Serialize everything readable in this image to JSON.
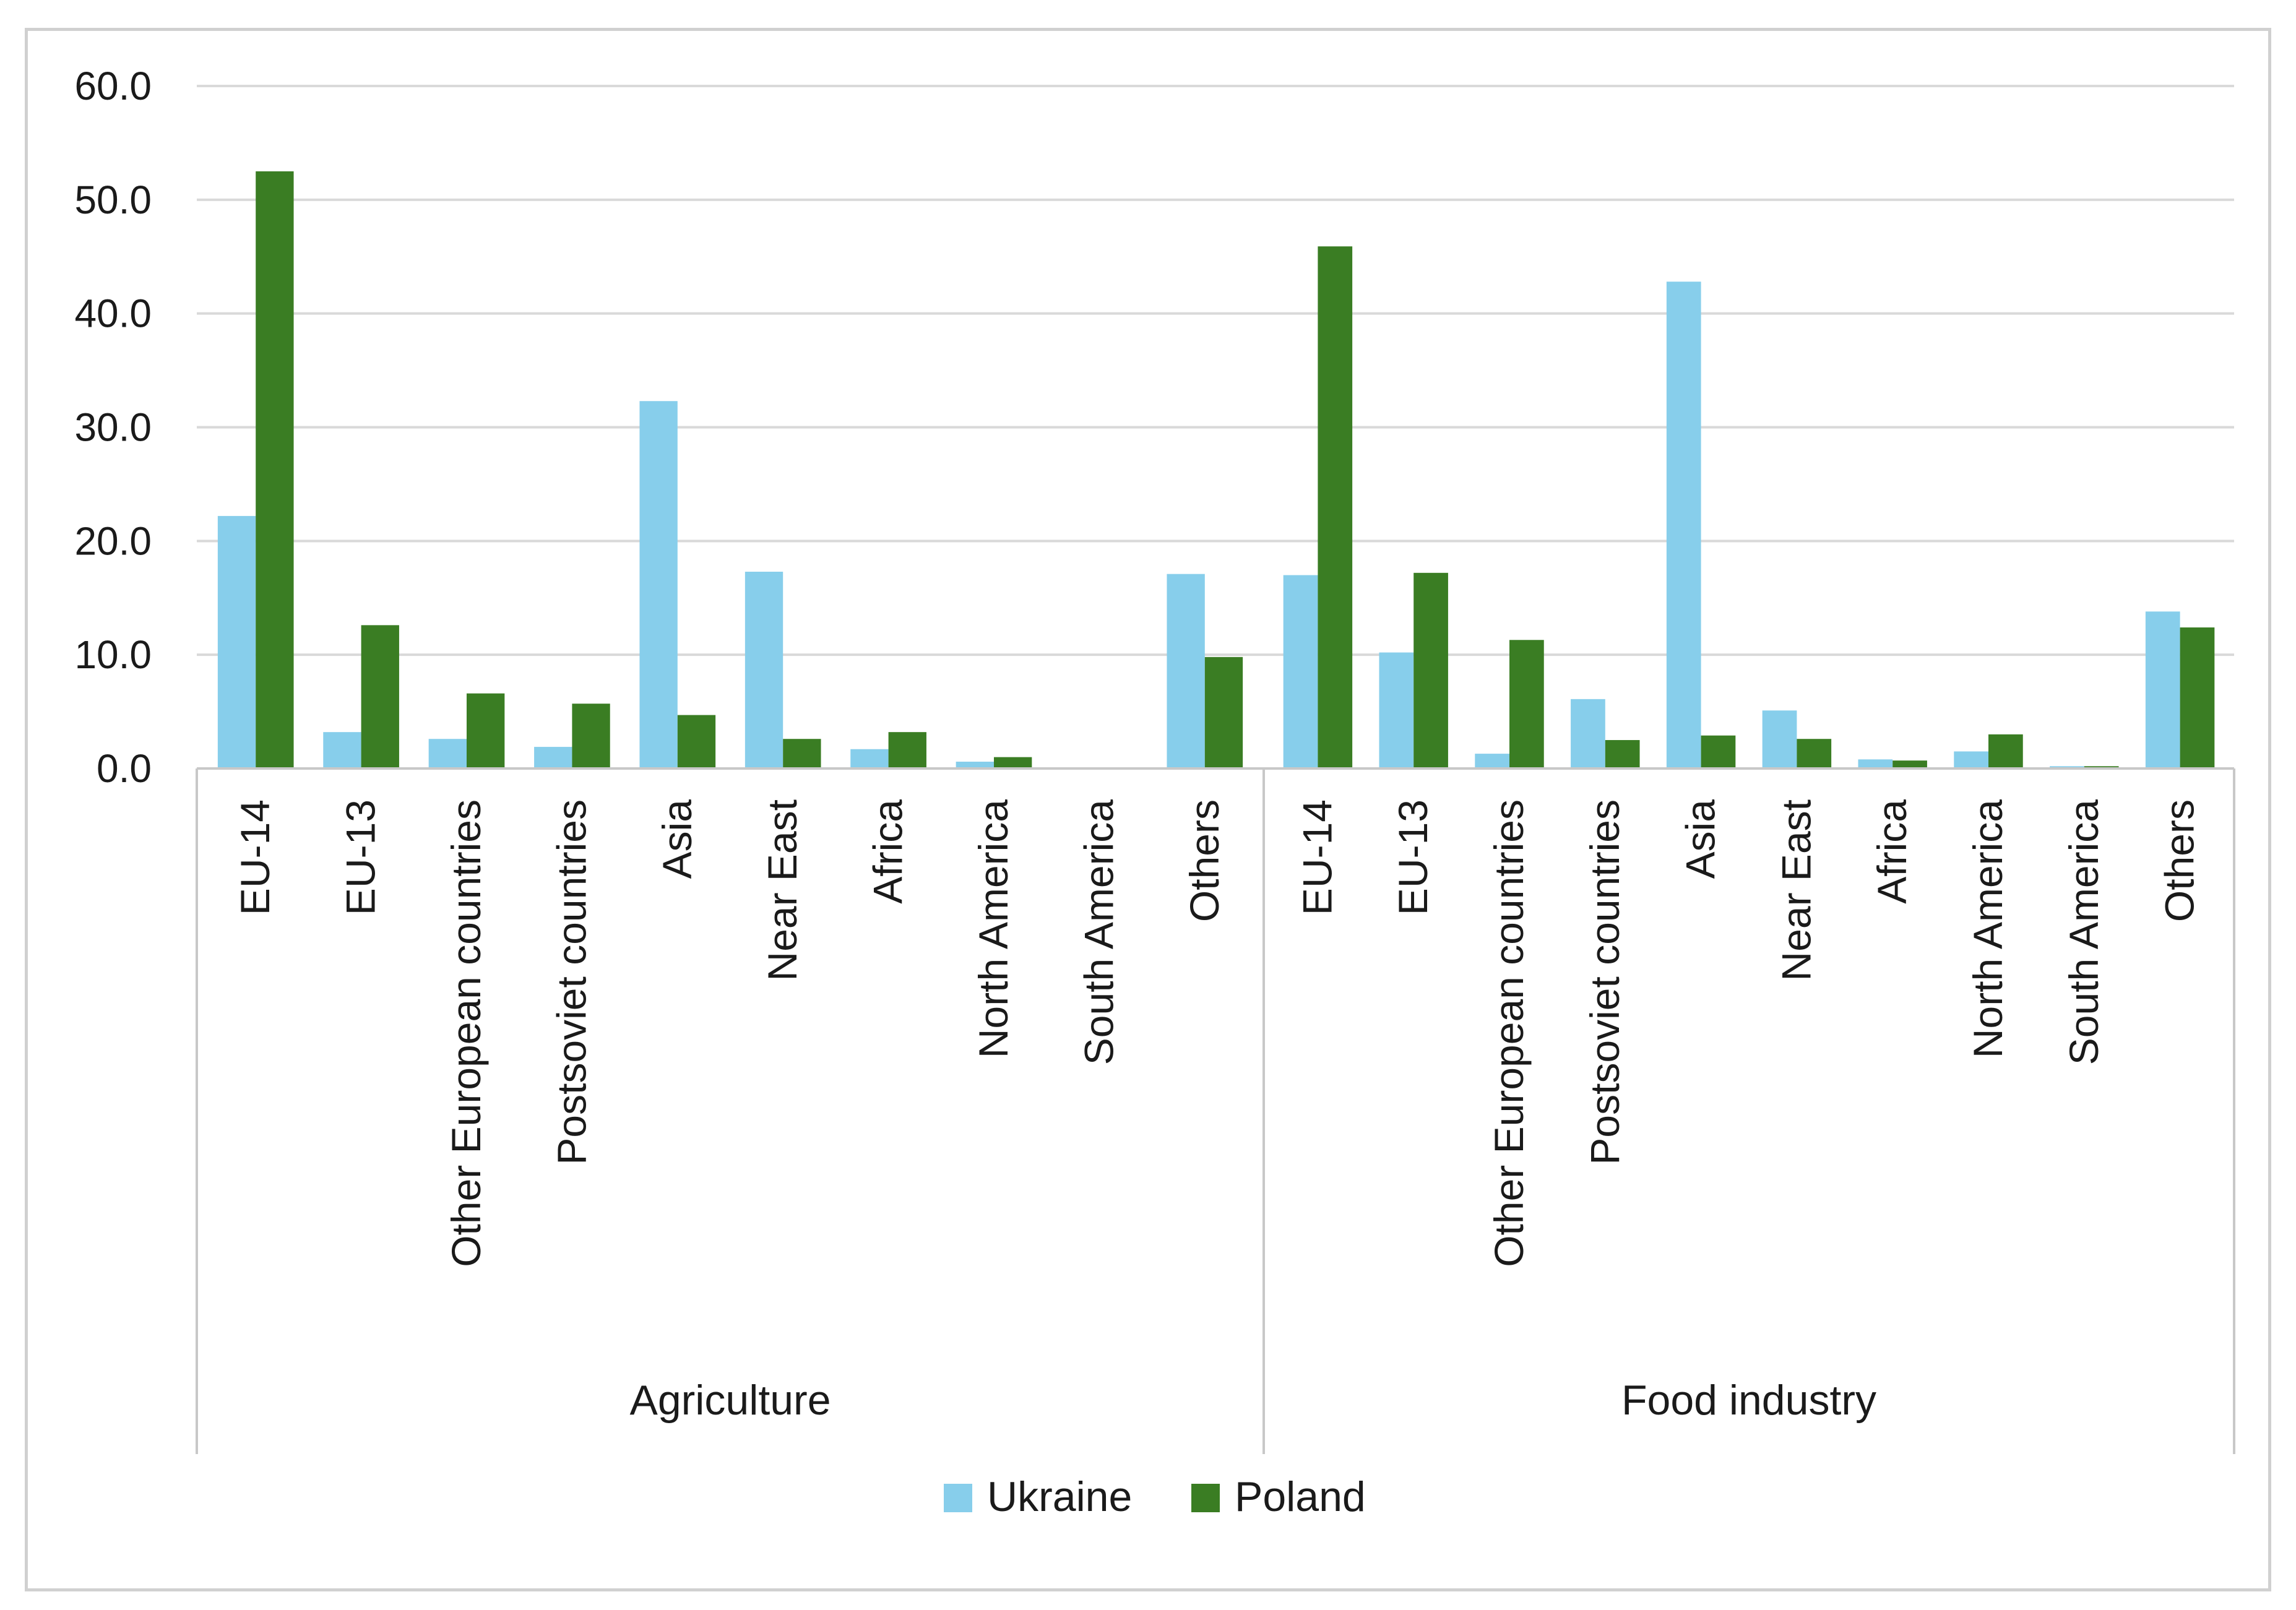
{
  "chart_data": {
    "type": "bar",
    "ylim": [
      0,
      60
    ],
    "yticks": [
      "0.0",
      "10.0",
      "20.0",
      "30.0",
      "40.0",
      "50.0",
      "60.0"
    ],
    "grid": true,
    "legend_position": "bottom",
    "groups": [
      {
        "name": "Agriculture",
        "categories": [
          "EU-14",
          "EU-13",
          "Other European countries",
          "Postsoviet countries",
          "Asia",
          "Near East",
          "Africa",
          "North America",
          "South America",
          "Others"
        ]
      },
      {
        "name": "Food industry",
        "categories": [
          "EU-14",
          "EU-13",
          "Other European countries",
          "Postsoviet countries",
          "Asia",
          "Near East",
          "Africa",
          "North America",
          "South America",
          "Others"
        ]
      }
    ],
    "series": [
      {
        "name": "Ukraine",
        "color": "#87ceeb",
        "values": [
          [
            22.2,
            3.2,
            2.6,
            1.9,
            32.3,
            17.3,
            1.7,
            0.6,
            0.0,
            17.1
          ],
          [
            17.0,
            10.2,
            1.3,
            6.1,
            42.8,
            5.1,
            0.8,
            1.5,
            0.2,
            13.8
          ]
        ]
      },
      {
        "name": "Poland",
        "color": "#3a7d23",
        "values": [
          [
            52.5,
            12.6,
            6.6,
            5.7,
            4.7,
            2.6,
            3.2,
            1.0,
            0.0,
            9.8
          ],
          [
            45.9,
            17.2,
            11.3,
            2.5,
            2.9,
            2.6,
            0.7,
            3.0,
            0.2,
            12.4
          ]
        ]
      }
    ]
  }
}
